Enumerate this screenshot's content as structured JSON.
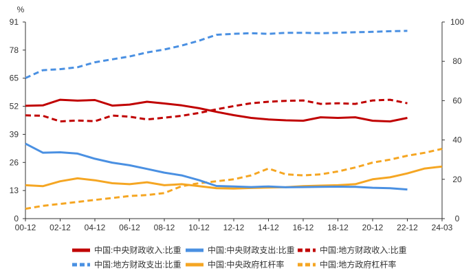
{
  "chart_data": {
    "type": "line",
    "unit_left": "%",
    "categories": [
      "00-12",
      "01-12",
      "02-12",
      "03-12",
      "04-12",
      "05-12",
      "06-12",
      "07-12",
      "08-12",
      "09-12",
      "10-12",
      "11-12",
      "12-12",
      "13-12",
      "14-12",
      "15-12",
      "16-12",
      "17-12",
      "18-12",
      "19-12",
      "20-12",
      "21-12",
      "22-12",
      "23-12",
      "24-03"
    ],
    "xtick_labels": [
      "00-12",
      "02-12",
      "04-12",
      "06-12",
      "08-12",
      "10-12",
      "12-12",
      "14-12",
      "16-12",
      "18-12",
      "20-12",
      "22-12",
      "24-03"
    ],
    "left_axis": {
      "min": 0,
      "max": 91,
      "ticks": [
        0,
        13,
        26,
        39,
        52,
        65,
        78,
        91
      ]
    },
    "right_axis": {
      "min": 0,
      "max": 100,
      "ticks": [
        0,
        20,
        40,
        60,
        80,
        100
      ]
    },
    "series": [
      {
        "name": "中国:中央财政收入:比重",
        "axis": "left",
        "color": "#C00000",
        "style": "solid",
        "values": [
          52.2,
          52.4,
          55.0,
          54.6,
          54.9,
          52.3,
          52.8,
          54.1,
          53.3,
          52.4,
          51.1,
          49.4,
          47.9,
          46.6,
          45.9,
          45.5,
          45.3,
          46.9,
          46.6,
          46.9,
          45.3,
          45.0,
          46.6,
          null,
          null
        ]
      },
      {
        "name": "中国:中央财政支出:比重",
        "axis": "left",
        "color": "#4A90E2",
        "style": "solid",
        "values": [
          34.7,
          30.5,
          30.7,
          30.1,
          27.7,
          25.9,
          24.7,
          23.0,
          21.3,
          20.0,
          17.8,
          15.1,
          14.9,
          14.6,
          14.9,
          14.5,
          14.6,
          14.7,
          14.8,
          14.7,
          14.3,
          14.1,
          13.5,
          null,
          null
        ]
      },
      {
        "name": "中国:地方财政收入:比重",
        "axis": "left",
        "color": "#C00000",
        "style": "dash",
        "values": [
          47.8,
          47.6,
          45.0,
          45.4,
          45.1,
          47.7,
          47.2,
          45.9,
          46.7,
          47.6,
          48.9,
          50.6,
          52.1,
          53.4,
          54.1,
          54.5,
          54.7,
          53.1,
          53.4,
          53.1,
          54.7,
          55.0,
          53.4,
          null,
          null
        ]
      },
      {
        "name": "中国:地方财政支出:比重",
        "axis": "right",
        "color": "#4A90E2",
        "style": "dash",
        "values": [
          71.5,
          75.5,
          76.0,
          77.0,
          79.5,
          81.0,
          82.5,
          84.5,
          86.0,
          88.0,
          90.5,
          93.5,
          94.0,
          94.3,
          94.0,
          94.5,
          94.5,
          94.3,
          94.5,
          94.8,
          95.0,
          95.3,
          95.5,
          null,
          null
        ]
      },
      {
        "name": "中国:中央政府杠杆率",
        "axis": "right",
        "color": "#F5A623",
        "style": "solid",
        "values": [
          17.0,
          16.5,
          19.0,
          20.5,
          19.5,
          18.0,
          17.5,
          18.5,
          17.0,
          17.5,
          16.5,
          15.5,
          15.3,
          15.6,
          15.8,
          16.0,
          16.5,
          16.8,
          17.0,
          17.5,
          20.0,
          21.0,
          23.0,
          25.5,
          26.5
        ]
      },
      {
        "name": "中国:地方政府杠杆率",
        "axis": "right",
        "color": "#F5A623",
        "style": "dash",
        "values": [
          5.0,
          6.5,
          7.5,
          8.5,
          9.5,
          10.5,
          11.5,
          12.0,
          13.0,
          16.5,
          18.0,
          19.0,
          20.0,
          22.0,
          25.5,
          22.5,
          22.0,
          22.5,
          24.0,
          26.0,
          28.5,
          30.0,
          32.0,
          33.5,
          35.5
        ]
      }
    ]
  }
}
